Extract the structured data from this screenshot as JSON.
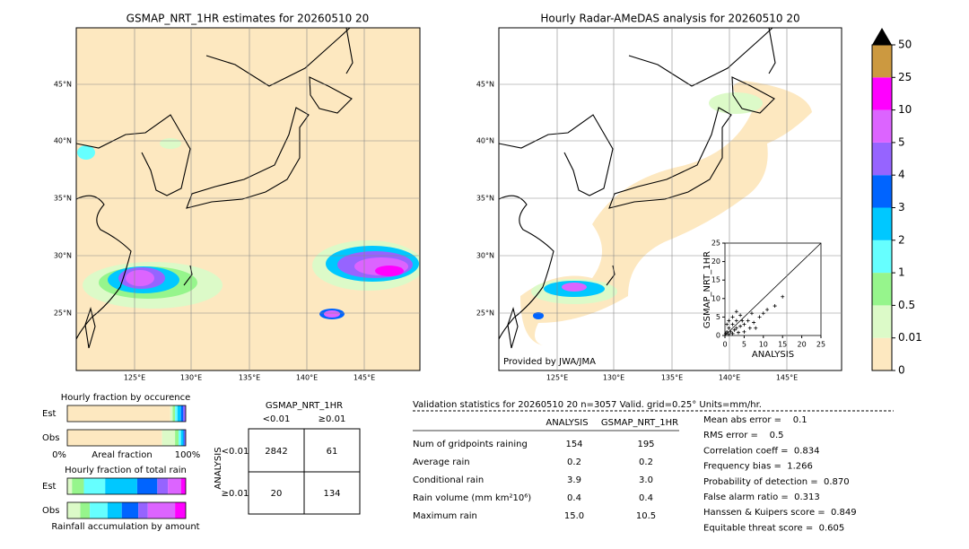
{
  "maps": [
    {
      "title": "GSMAP_NRT_1HR estimates for 20260510 20",
      "lat_labels": [
        "45°N",
        "40°N",
        "35°N",
        "30°N",
        "25°N"
      ],
      "lon_labels": [
        "125°E",
        "130°E",
        "135°E",
        "140°E",
        "145°E"
      ]
    },
    {
      "title": "Hourly Radar-AMeDAS analysis for 20260510 20",
      "lat_labels": [
        "45°N",
        "40°N",
        "35°N",
        "30°N",
        "25°N"
      ],
      "lon_labels": [
        "125°E",
        "130°E",
        "135°E",
        "140°E",
        "145°E"
      ],
      "credit": "Provided by JWA/JMA"
    }
  ],
  "colorbar": {
    "levels": [
      0,
      0.01,
      0.5,
      1,
      2,
      3,
      4,
      5,
      10,
      25,
      50
    ],
    "colors": [
      "#fde8c0",
      "#dcfac8",
      "#96f58c",
      "#66ffff",
      "#00c8ff",
      "#0064ff",
      "#9664ff",
      "#dc64ff",
      "#ff00ff",
      "#cc9940"
    ],
    "extend_color": "#000000"
  },
  "scatter": {
    "type": "scatter",
    "x_label": "ANALYSIS",
    "y_label": "GSMAP_NRT_1HR",
    "xlim": [
      0,
      25
    ],
    "ylim": [
      0,
      25
    ],
    "xticks": [
      0,
      5,
      10,
      15,
      20,
      25
    ],
    "yticks": [
      0,
      5,
      10,
      15,
      20,
      25
    ],
    "x": [
      0.2,
      0.5,
      1,
      1,
      1.5,
      2,
      2,
      2.5,
      3,
      3,
      3.5,
      4,
      4,
      5,
      5,
      6,
      6.5,
      7,
      7.5,
      8,
      9,
      10,
      11,
      13,
      15,
      1,
      0.5,
      2,
      3,
      4.5
    ],
    "y": [
      0.5,
      1,
      0.3,
      2,
      1,
      0.5,
      3,
      1.5,
      2,
      4,
      0.8,
      2.5,
      5.5,
      3,
      1,
      4,
      2,
      6,
      3.5,
      2,
      5,
      6,
      7,
      8,
      10.5,
      4,
      3,
      5,
      6.5,
      4
    ]
  },
  "occurrence": {
    "title": "Hourly fraction by occurence",
    "rows": [
      "Est",
      "Obs"
    ],
    "axis_labels": [
      "0%",
      "Areal fraction",
      "100%"
    ],
    "est": [
      87,
      2,
      2,
      2,
      3,
      2,
      2
    ],
    "obs": [
      80,
      11,
      3,
      2,
      2,
      1,
      1
    ],
    "colors": [
      "#fde8c0",
      "#dcfac8",
      "#96f58c",
      "#66ffff",
      "#00c8ff",
      "#0064ff",
      "#9664ff"
    ]
  },
  "total_rain": {
    "title": "Hourly fraction of total rain",
    "rows": [
      "Est",
      "Obs"
    ],
    "caption": "Rainfall accumulation by amount",
    "est": [
      4,
      10,
      18,
      27,
      17,
      9,
      11,
      4
    ],
    "obs": [
      11,
      8,
      15,
      12,
      14,
      8,
      23,
      9
    ],
    "colors": [
      "#dcfac8",
      "#96f58c",
      "#66ffff",
      "#00c8ff",
      "#0064ff",
      "#9664ff",
      "#dc64ff",
      "#ff00ff"
    ]
  },
  "contingency": {
    "title": "GSMAP_NRT_1HR",
    "columns": [
      "<0.01",
      "≥0.01"
    ],
    "row_axis": "ANALYSIS",
    "rows": [
      "<0.01",
      "≥0.01"
    ],
    "cells": [
      [
        "2842",
        "61"
      ],
      [
        "20",
        "134"
      ]
    ]
  },
  "validation": {
    "header": "Validation statistics for 20260510 20  n=3057 Valid. grid=0.25° Units=mm/hr.",
    "columns": [
      "ANALYSIS",
      "GSMAP_NRT_1HR"
    ],
    "rows": [
      [
        "Num of gridpoints raining",
        "154",
        "195"
      ],
      [
        "Average rain",
        "0.2",
        "0.2"
      ],
      [
        "Conditional rain",
        "3.9",
        "3.0"
      ],
      [
        "Rain volume (mm km²10⁶)",
        "0.4",
        "0.4"
      ],
      [
        "Maximum rain",
        "15.0",
        "10.5"
      ]
    ],
    "scores": [
      "Mean abs error =    0.1",
      "RMS error =    0.5",
      "Correlation coeff =  0.834",
      "Frequency bias =  1.266",
      "Probability of detection =  0.870",
      "False alarm ratio =  0.313",
      "Hanssen & Kuipers score =  0.849",
      "Equitable threat score =  0.605"
    ]
  }
}
